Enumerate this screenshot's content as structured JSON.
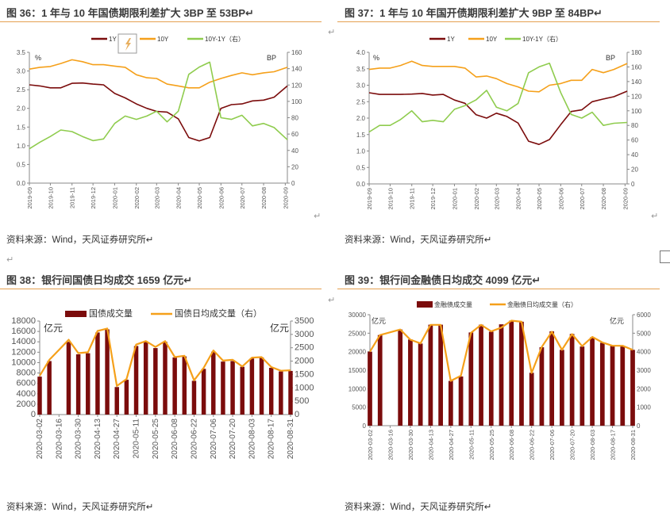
{
  "page": {
    "return_mark": "↵",
    "source_text": "资料来源：Wind，天风证券研究所↵"
  },
  "figures": [
    {
      "title": "图 36：1 年与 10 年国债期限利差扩大 3BP 至 53BP↵"
    },
    {
      "title": "图 37：1 年与 10 年国开债期限利差扩大 9BP 至 84BP↵"
    },
    {
      "title": "图 38：银行间国债日均成交 1659 亿元↵"
    },
    {
      "title": "图 39：银行间金融债日均成交 4099 亿元↵"
    }
  ],
  "colors": {
    "y1": "#7b0c0c",
    "y10": "#f5a01a",
    "spread": "#8fcc4e",
    "bar": "#7b0c0c",
    "line": "#f5a01a",
    "rule": "#e5a050"
  },
  "chart_data": [
    {
      "type": "line",
      "left_unit": "%",
      "right_unit": "BP",
      "ylim": [
        0,
        3.5
      ],
      "y_ticks": [
        "0.0",
        "0.5",
        "1.0",
        "1.5",
        "2.0",
        "2.5",
        "3.0",
        "3.5"
      ],
      "y2lim": [
        0,
        160
      ],
      "y2_ticks": [
        "0",
        "20",
        "40",
        "60",
        "80",
        "100",
        "120",
        "140",
        "160"
      ],
      "x_ticks": [
        "2019-09",
        "2019-10",
        "2019-11",
        "2019-12",
        "2020-01",
        "2020-02",
        "2020-03",
        "2020-04",
        "2020-05",
        "2020-06",
        "2020-07",
        "2020-08",
        "2020-09"
      ],
      "x": [
        "2019-09-01",
        "2019-09-16",
        "2019-10-01",
        "2019-10-16",
        "2019-11-01",
        "2019-11-16",
        "2019-12-01",
        "2019-12-16",
        "2020-01-01",
        "2020-01-16",
        "2020-02-01",
        "2020-02-16",
        "2020-03-01",
        "2020-03-16",
        "2020-04-01",
        "2020-04-16",
        "2020-05-01",
        "2020-05-16",
        "2020-06-01",
        "2020-06-16",
        "2020-07-01",
        "2020-07-16",
        "2020-08-01",
        "2020-08-16",
        "2020-09-04"
      ],
      "series": [
        {
          "name": "1Y",
          "axis": "left",
          "values": [
            2.63,
            2.6,
            2.55,
            2.55,
            2.67,
            2.68,
            2.65,
            2.63,
            2.4,
            2.28,
            2.12,
            2.0,
            1.92,
            1.9,
            1.72,
            1.22,
            1.13,
            1.22,
            2.0,
            2.1,
            2.12,
            2.2,
            2.22,
            2.3,
            2.6
          ]
        },
        {
          "name": "10Y",
          "axis": "left",
          "values": [
            3.05,
            3.1,
            3.12,
            3.2,
            3.3,
            3.25,
            3.17,
            3.17,
            3.13,
            3.1,
            2.9,
            2.82,
            2.8,
            2.65,
            2.6,
            2.55,
            2.55,
            2.7,
            2.8,
            2.88,
            2.95,
            2.9,
            2.95,
            2.98,
            3.1
          ]
        },
        {
          "name": "10Y-1Y（右）",
          "axis": "right",
          "values": [
            42,
            50,
            57,
            65,
            63,
            57,
            52,
            54,
            73,
            82,
            78,
            82,
            88,
            75,
            88,
            133,
            142,
            148,
            80,
            78,
            83,
            70,
            73,
            68,
            53
          ]
        }
      ],
      "legend_position": "top-center"
    },
    {
      "type": "line",
      "left_unit": "%",
      "right_unit": "BP",
      "ylim": [
        0,
        4.0
      ],
      "y_ticks": [
        "0.0",
        "0.5",
        "1.0",
        "1.5",
        "2.0",
        "2.5",
        "3.0",
        "3.5",
        "4.0"
      ],
      "y2lim": [
        0,
        180
      ],
      "y2_ticks": [
        "0",
        "20",
        "40",
        "60",
        "80",
        "100",
        "120",
        "140",
        "160",
        "180"
      ],
      "x_ticks": [
        "2019-09",
        "2019-10",
        "2019-11",
        "2019-12",
        "2020-01",
        "2020-02",
        "2020-03",
        "2020-04",
        "2020-05",
        "2020-06",
        "2020-07",
        "2020-08",
        "2020-09"
      ],
      "x": [
        "2019-09-01",
        "2019-09-16",
        "2019-10-01",
        "2019-10-16",
        "2019-11-01",
        "2019-11-16",
        "2019-12-01",
        "2019-12-16",
        "2020-01-01",
        "2020-01-16",
        "2020-02-01",
        "2020-02-16",
        "2020-03-01",
        "2020-03-16",
        "2020-04-01",
        "2020-04-16",
        "2020-05-01",
        "2020-05-16",
        "2020-06-01",
        "2020-06-16",
        "2020-07-01",
        "2020-07-16",
        "2020-08-01",
        "2020-08-16",
        "2020-09-04"
      ],
      "series": [
        {
          "name": "1Y",
          "axis": "left",
          "values": [
            2.77,
            2.72,
            2.72,
            2.72,
            2.73,
            2.75,
            2.7,
            2.72,
            2.55,
            2.45,
            2.1,
            2.0,
            2.15,
            2.05,
            1.85,
            1.3,
            1.2,
            1.35,
            1.8,
            2.2,
            2.25,
            2.5,
            2.58,
            2.65,
            2.82
          ]
        },
        {
          "name": "10Y",
          "axis": "left",
          "values": [
            3.48,
            3.52,
            3.52,
            3.6,
            3.73,
            3.6,
            3.57,
            3.57,
            3.57,
            3.52,
            3.25,
            3.28,
            3.2,
            3.05,
            2.95,
            2.82,
            2.8,
            3.0,
            3.05,
            3.15,
            3.15,
            3.48,
            3.38,
            3.48,
            3.66
          ]
        },
        {
          "name": "10Y-1Y（右）",
          "axis": "right",
          "values": [
            71,
            80,
            80,
            88,
            100,
            85,
            87,
            85,
            102,
            107,
            115,
            128,
            105,
            100,
            110,
            152,
            160,
            165,
            125,
            95,
            90,
            98,
            80,
            83,
            84
          ]
        }
      ],
      "legend_position": "top-center"
    },
    {
      "type": "bar+line",
      "left_unit": "亿元",
      "right_unit": "亿元",
      "ylim": [
        0,
        18000
      ],
      "y_ticks": [
        "0",
        "2000",
        "4000",
        "6000",
        "8000",
        "10000",
        "12000",
        "14000",
        "16000",
        "18000"
      ],
      "y2lim": [
        0,
        3500
      ],
      "y2_ticks": [
        "0",
        "500",
        "1000",
        "1500",
        "2000",
        "2500",
        "3000",
        "3500"
      ],
      "x_ticks": [
        "2020-03-02",
        "2020-03-16",
        "2020-03-30",
        "2020-04-13",
        "2020-04-27",
        "2020-05-11",
        "2020-05-25",
        "2020-06-08",
        "2020-06-22",
        "2020-07-06",
        "2020-07-20",
        "2020-08-03",
        "2020-08-17",
        "2020-08-31"
      ],
      "x": [
        "2020-03-02",
        "2020-03-09",
        "2020-03-16",
        "2020-03-23",
        "2020-03-30",
        "2020-04-06",
        "2020-04-13",
        "2020-04-20",
        "2020-04-27",
        "2020-05-04",
        "2020-05-11",
        "2020-05-18",
        "2020-05-25",
        "2020-06-01",
        "2020-06-08",
        "2020-06-15",
        "2020-06-22",
        "2020-06-29",
        "2020-07-06",
        "2020-07-13",
        "2020-07-20",
        "2020-07-27",
        "2020-08-03",
        "2020-08-10",
        "2020-08-17",
        "2020-08-24",
        "2020-08-31"
      ],
      "series": [
        {
          "name": "国债成交量",
          "type": "bar",
          "axis": "left",
          "values": [
            7300,
            10300,
            null,
            14000,
            11600,
            11800,
            15800,
            16400,
            5300,
            6700,
            13200,
            14000,
            12800,
            14000,
            11000,
            11200,
            6500,
            8800,
            12100,
            10200,
            10300,
            9200,
            10800,
            11000,
            9000,
            8300,
            8400
          ]
        },
        {
          "name": "国债日均成交量（右）",
          "type": "line",
          "axis": "right",
          "values": [
            1450,
            2050,
            2420,
            2800,
            2300,
            2330,
            3130,
            3220,
            1070,
            1330,
            2620,
            2750,
            2530,
            2750,
            2150,
            2200,
            1280,
            1750,
            2400,
            2020,
            2050,
            1800,
            2130,
            2150,
            1780,
            1640,
            1659
          ]
        }
      ],
      "legend_position": "top-center"
    },
    {
      "type": "bar+line",
      "left_unit": "亿元",
      "right_unit": "亿元",
      "ylim": [
        0,
        30000
      ],
      "y_ticks": [
        "0",
        "5000",
        "10000",
        "15000",
        "20000",
        "25000",
        "30000"
      ],
      "y2lim": [
        0,
        6000
      ],
      "y2_ticks": [
        "0",
        "1000",
        "2000",
        "3000",
        "4000",
        "5000",
        "6000"
      ],
      "x_ticks": [
        "2020-03-02",
        "2020-03-16",
        "2020-03-30",
        "2020-04-13",
        "2020-04-27",
        "2020-05-11",
        "2020-05-25",
        "2020-06-08",
        "2020-06-22",
        "2020-07-06",
        "2020-07-20",
        "2020-08-03",
        "2020-08-17",
        "2020-08-31"
      ],
      "x": [
        "2020-03-02",
        "2020-03-09",
        "2020-03-16",
        "2020-03-23",
        "2020-03-30",
        "2020-04-06",
        "2020-04-13",
        "2020-04-20",
        "2020-04-27",
        "2020-05-04",
        "2020-05-11",
        "2020-05-18",
        "2020-05-25",
        "2020-06-01",
        "2020-06-08",
        "2020-06-15",
        "2020-06-22",
        "2020-06-29",
        "2020-07-06",
        "2020-07-13",
        "2020-07-20",
        "2020-07-27",
        "2020-08-03",
        "2020-08-10",
        "2020-08-17",
        "2020-08-24",
        "2020-08-31"
      ],
      "series": [
        {
          "name": "金融债成交量",
          "type": "bar",
          "axis": "left",
          "values": [
            20000,
            24500,
            null,
            26000,
            23300,
            22200,
            27300,
            27300,
            12100,
            13300,
            25200,
            27300,
            25400,
            27400,
            28400,
            28100,
            14300,
            21200,
            25500,
            20500,
            24800,
            21400,
            23900,
            22400,
            21600,
            21600,
            20500
          ]
        },
        {
          "name": "金融债日均成交量（右）",
          "type": "line",
          "axis": "right",
          "values": [
            4000,
            4900,
            5050,
            5200,
            4650,
            4450,
            5450,
            5450,
            2420,
            2700,
            5020,
            5450,
            5100,
            5300,
            5680,
            5620,
            2850,
            4250,
            5080,
            4100,
            4950,
            4300,
            4800,
            4500,
            4320,
            4320,
            4099
          ]
        }
      ],
      "legend_position": "top-center"
    }
  ]
}
